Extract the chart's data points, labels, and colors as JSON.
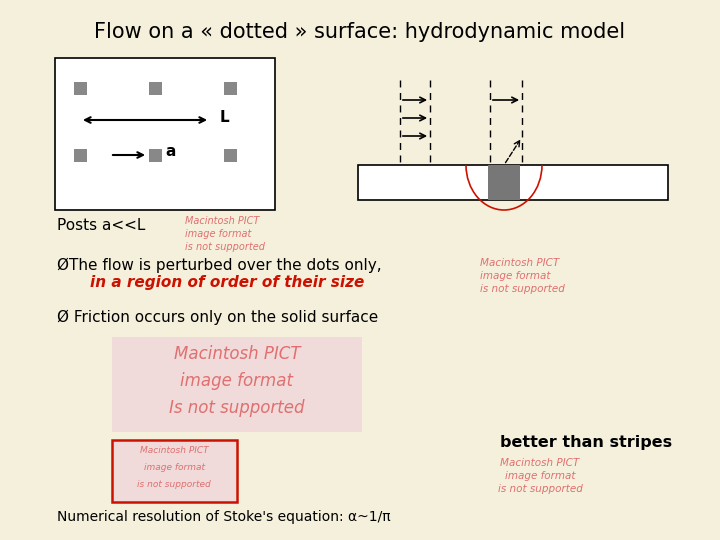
{
  "bg_color": "#f5f0dc",
  "title": "Flow on a « dotted » surface: hydrodynamic model",
  "title_fontsize": 15,
  "posts_label": "Posts a<<L",
  "bullet1_prefix": "ØThe flow is perturbed over the dots only,",
  "bullet1_red": "in a region of order of their size",
  "bullet2": "Ø Friction occurs only on the solid surface",
  "better_than": "better than stripes",
  "numerical": "Numerical resolution of Stoke's equation: α~1/π",
  "macintosh_color": "#e07070",
  "red_text_color": "#cc1100",
  "black": "#000000",
  "dot_color": "#888888",
  "post_color": "#777777"
}
